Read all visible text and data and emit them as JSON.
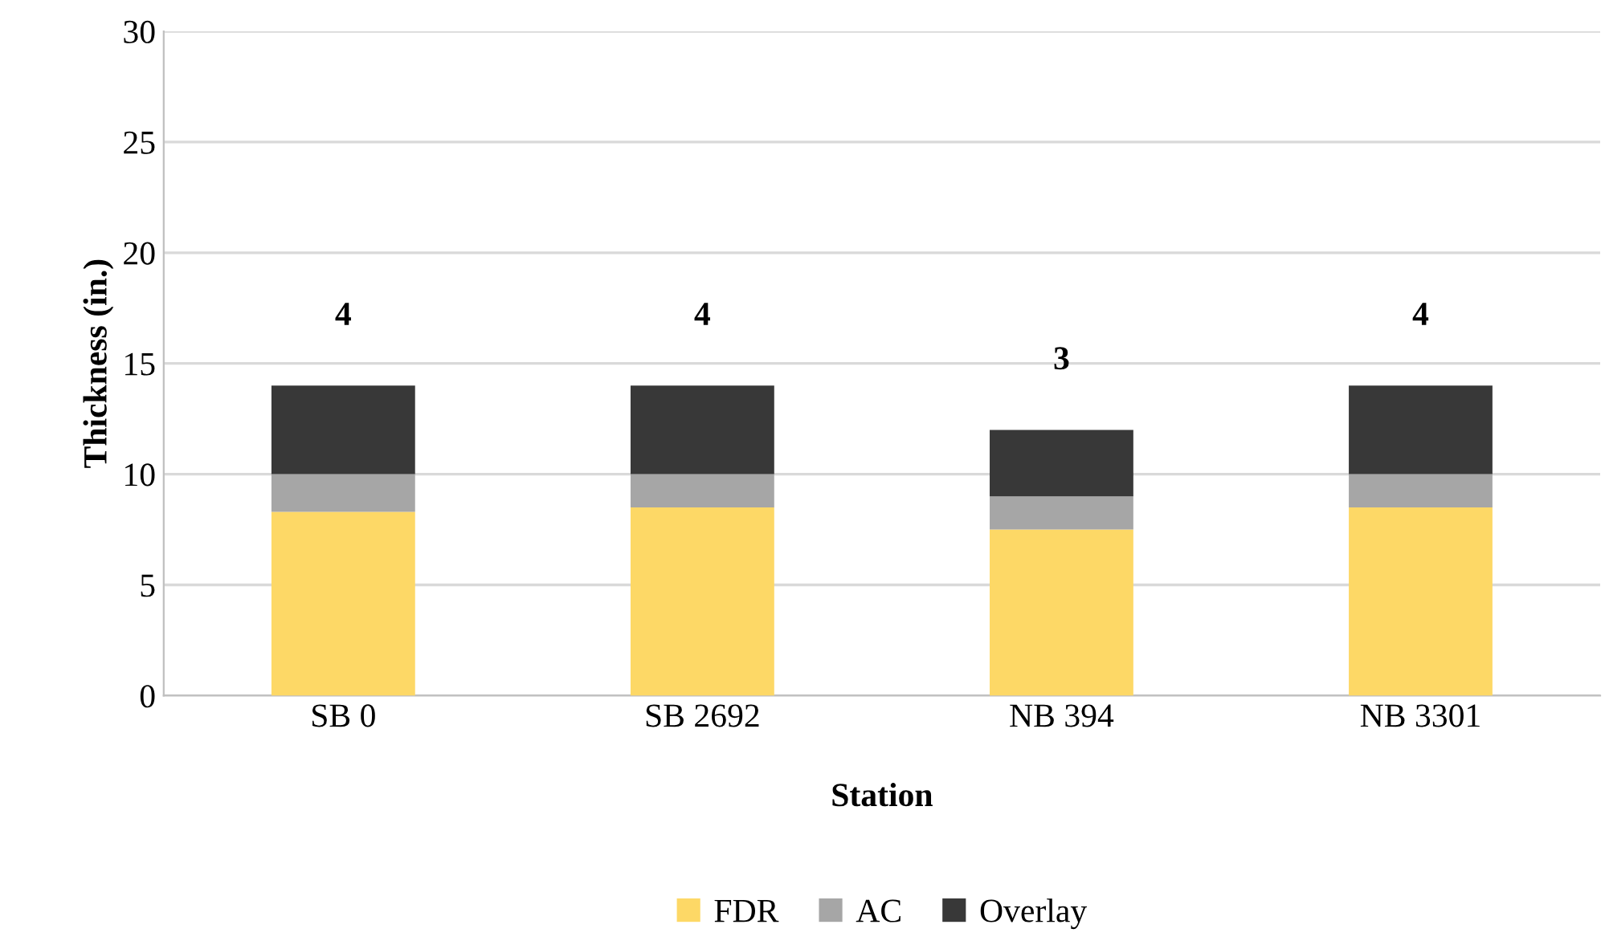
{
  "chart_data": {
    "type": "bar",
    "stacked": true,
    "xlabel": "Station",
    "ylabel": "Thickness (in.)",
    "categories": [
      "SB 0",
      "SB 2692",
      "NB 394",
      "NB 3301"
    ],
    "series": [
      {
        "name": "FDR",
        "color": "#fdd866",
        "values": [
          8.3,
          8.5,
          7.5,
          8.5
        ]
      },
      {
        "name": "AC",
        "color": "#a6a6a6",
        "values": [
          1.7,
          1.5,
          1.5,
          1.5
        ]
      },
      {
        "name": "Overlay",
        "color": "#383838",
        "values": [
          4,
          4,
          3,
          4
        ],
        "value_labels": [
          "4",
          "4",
          "3",
          "4"
        ]
      }
    ],
    "ylim": [
      0,
      30
    ],
    "yticks": [
      0,
      5,
      10,
      15,
      20,
      25,
      30
    ],
    "grid": "y",
    "legend": "bottom"
  }
}
